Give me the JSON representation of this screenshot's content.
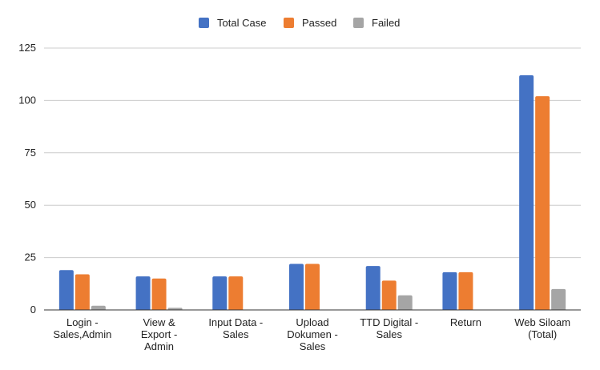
{
  "chart_data": {
    "type": "bar",
    "title": "",
    "xlabel": "",
    "ylabel": "",
    "ylim": [
      0,
      125
    ],
    "yticks": [
      0,
      25,
      50,
      75,
      100,
      125
    ],
    "grid": "horizontal",
    "legend_position": "top-center",
    "categories": [
      [
        "Login -",
        "Sales,Admin"
      ],
      [
        "View &",
        "Export -",
        "Admin"
      ],
      [
        "Input Data -",
        "Sales"
      ],
      [
        "Upload",
        "Dokumen -",
        "Sales"
      ],
      [
        "TTD Digital -",
        "Sales"
      ],
      [
        "Return"
      ],
      [
        "Web Siloam",
        "(Total)"
      ]
    ],
    "series": [
      {
        "name": "Total Case",
        "color": "#4472c4",
        "values": [
          19,
          16,
          16,
          22,
          21,
          18,
          112
        ]
      },
      {
        "name": "Passed",
        "color": "#ed7d31",
        "values": [
          17,
          15,
          16,
          22,
          14,
          18,
          102
        ]
      },
      {
        "name": "Failed",
        "color": "#a5a5a5",
        "values": [
          2,
          1,
          0,
          0,
          7,
          0,
          10
        ]
      }
    ]
  }
}
